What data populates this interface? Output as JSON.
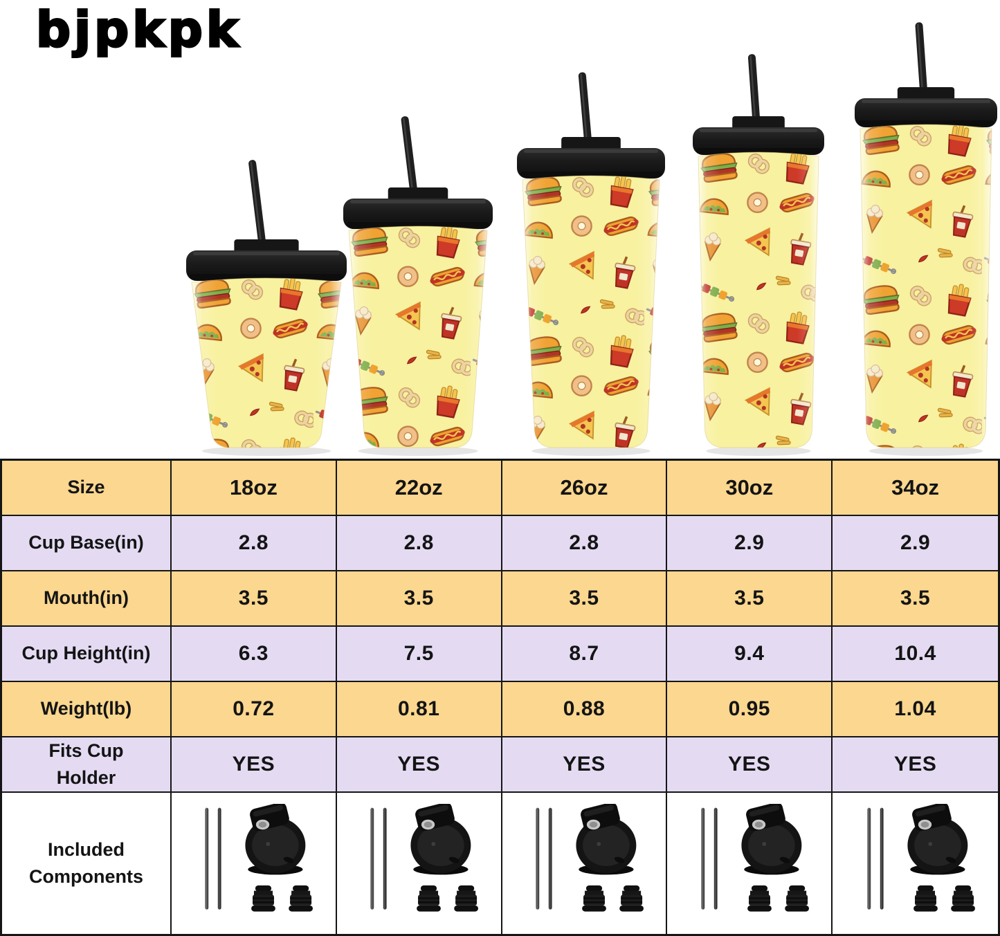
{
  "brand": {
    "logo": "bjpkpk"
  },
  "tumblers": [
    {
      "size": "18oz"
    },
    {
      "size": "22oz"
    },
    {
      "size": "26oz"
    },
    {
      "size": "30oz"
    },
    {
      "size": "34oz"
    }
  ],
  "spec_table": {
    "rows": [
      {
        "label": "Size",
        "theme": "yellow",
        "values": [
          "18oz",
          "22oz",
          "26oz",
          "30oz",
          "34oz"
        ]
      },
      {
        "label": "Cup Base(in)",
        "theme": "lavender",
        "values": [
          "2.8",
          "2.8",
          "2.8",
          "2.9",
          "2.9"
        ]
      },
      {
        "label": "Mouth(in)",
        "theme": "yellow",
        "values": [
          "3.5",
          "3.5",
          "3.5",
          "3.5",
          "3.5"
        ]
      },
      {
        "label": "Cup Height(in)",
        "theme": "lavender",
        "values": [
          "6.3",
          "7.5",
          "8.7",
          "9.4",
          "10.4"
        ]
      },
      {
        "label": "Weight(lb)",
        "theme": "yellow",
        "values": [
          "0.72",
          "0.81",
          "0.88",
          "0.95",
          "1.04"
        ]
      },
      {
        "label": "Fits Cup Holder",
        "theme": "lavender",
        "values": [
          "YES",
          "YES",
          "YES",
          "YES",
          "YES"
        ]
      },
      {
        "label": "Included Components",
        "theme": "white",
        "type": "components"
      }
    ]
  },
  "included_components": {
    "items": [
      "two-metal-straws",
      "flip-top-lid",
      "two-straw-stoppers"
    ]
  },
  "colors": {
    "row_yellow": "#fbd78f",
    "row_lavender": "#e4dbf3",
    "table_border": "#151515",
    "cup_body_yellow": "#f8f19f",
    "lid_black": "#1b1b1b"
  }
}
